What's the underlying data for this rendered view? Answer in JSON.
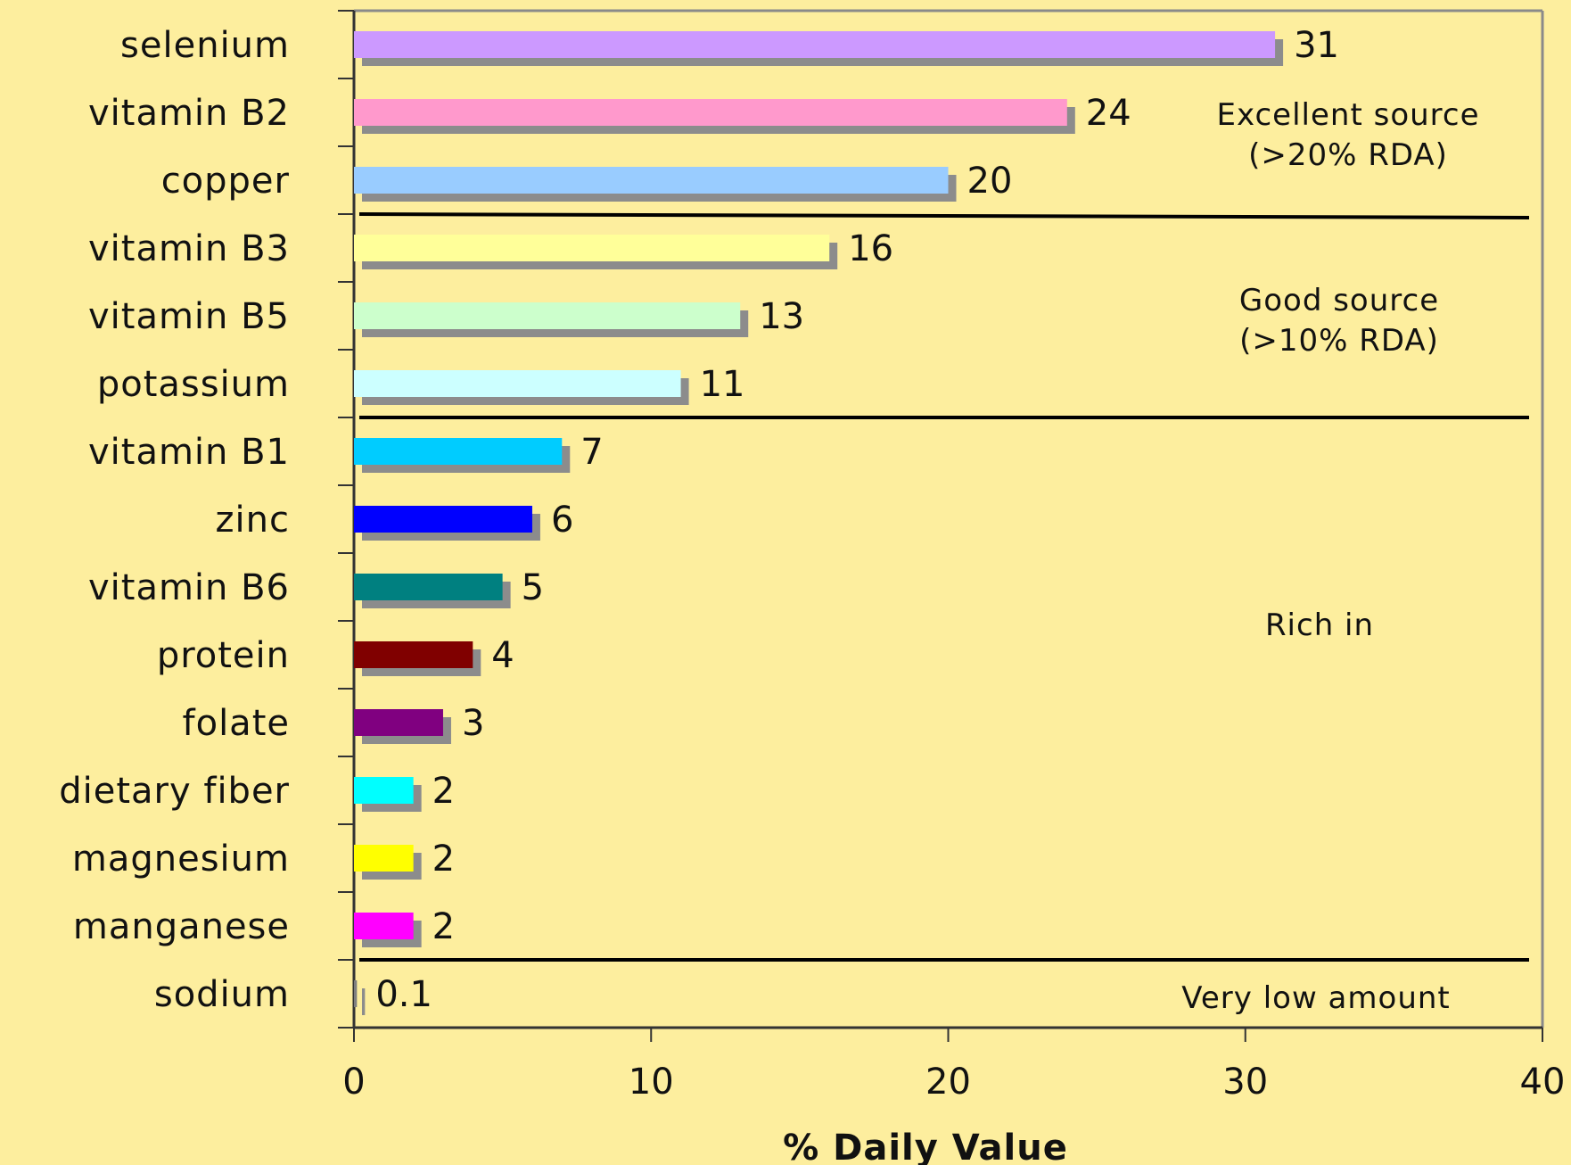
{
  "chart_data": {
    "type": "bar",
    "orientation": "horizontal",
    "categories": [
      "selenium",
      "vitamin B2",
      "copper",
      "vitamin B3",
      "vitamin B5",
      "potassium",
      "vitamin B1",
      "zinc",
      "vitamin B6",
      "protein",
      "folate",
      "dietary fiber",
      "magnesium",
      "manganese",
      "sodium"
    ],
    "values": [
      31,
      24,
      20,
      16,
      13,
      11,
      7,
      6,
      5,
      4,
      3,
      2,
      2,
      2,
      0.1
    ],
    "value_labels": [
      "31",
      "24",
      "20",
      "16",
      "13",
      "11",
      "7",
      "6",
      "5",
      "4",
      "3",
      "2",
      "2",
      "2",
      "0.1"
    ],
    "colors": [
      "#cc99ff",
      "#ff99cc",
      "#99ccff",
      "#ffff99",
      "#ccffcc",
      "#ccffff",
      "#00ccff",
      "#0000ff",
      "#008080",
      "#800000",
      "#800080",
      "#00ffff",
      "#ffff00",
      "#ff00ff",
      "#7f7f7f"
    ],
    "shadow_color": "#8c8c8c",
    "background_color": "#fdee9e",
    "title": "",
    "xlabel": "% Daily Value",
    "ylabel": "",
    "xlim": [
      0,
      40
    ],
    "xticks": [
      "0",
      "10",
      "20",
      "30",
      "40"
    ],
    "grid": false,
    "legend": "none",
    "zones": [
      {
        "lines": [
          "Excellent source",
          "(>20% RDA)"
        ]
      },
      {
        "lines": [
          "Good source",
          "(>10% RDA)"
        ]
      },
      {
        "lines": [
          "Rich in"
        ]
      },
      {
        "lines": [
          "Very low amount"
        ]
      }
    ]
  }
}
